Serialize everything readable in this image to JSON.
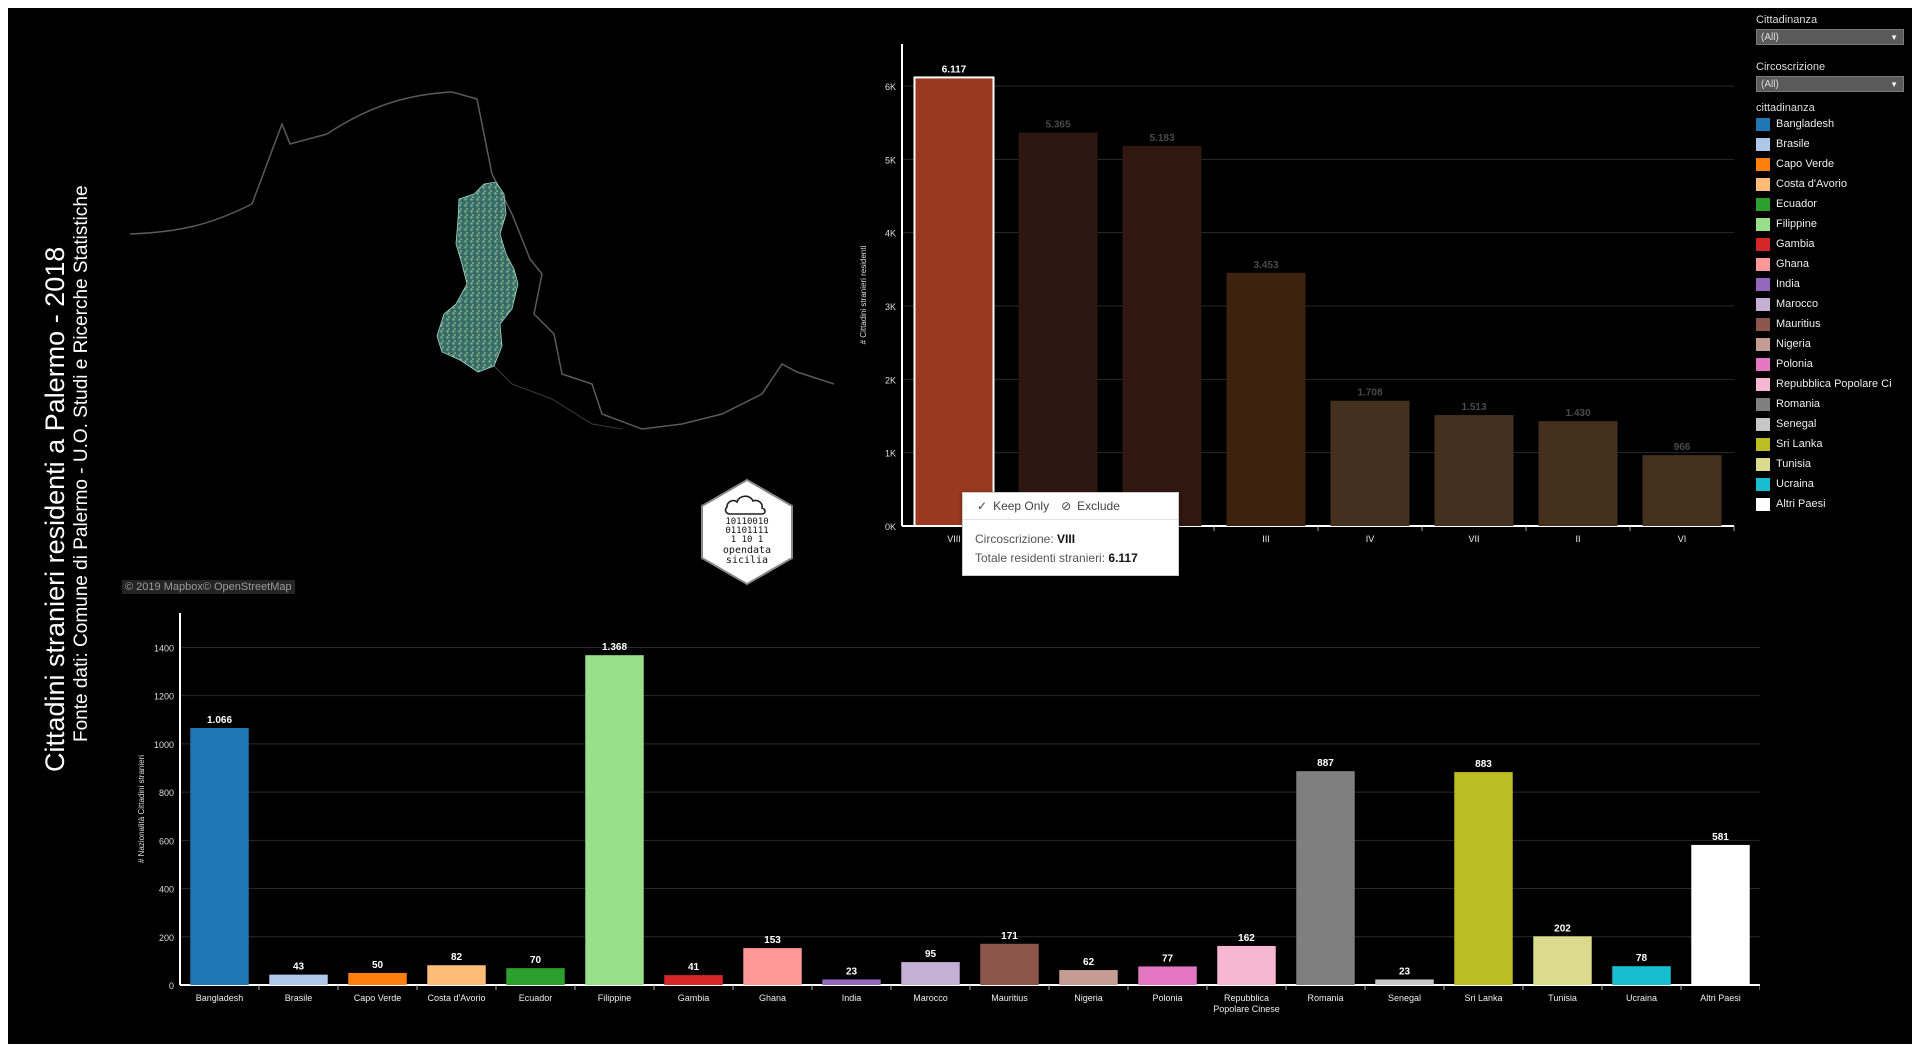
{
  "sidebar": {
    "title": "Cittadini stranieri residenti a Palermo - 2018",
    "subtitle": "Fonte dati: Comune di Palermo - U.O. Studi e Ricerche Statistiche"
  },
  "map": {
    "credit": "© 2019 Mapbox© OpenStreetMap"
  },
  "logo": {
    "line1": "10110010",
    "line2": "01101111",
    "line3": "1  10 1",
    "brand1": "opendata",
    "brand2": "sicilia"
  },
  "filters": {
    "cittadinanza": {
      "label": "Cittadinanza",
      "value": "(All)"
    },
    "circoscrizione": {
      "label": "Circoscrizione",
      "value": "(All)"
    }
  },
  "legend": {
    "title": "cittadinanza",
    "items": [
      {
        "label": "Bangladesh",
        "color": "#1f77b4"
      },
      {
        "label": "Brasile",
        "color": "#aec7e8"
      },
      {
        "label": "Capo Verde",
        "color": "#ff7f0e"
      },
      {
        "label": "Costa d'Avorio",
        "color": "#ffbb78"
      },
      {
        "label": "Ecuador",
        "color": "#2ca02c"
      },
      {
        "label": "Filippine",
        "color": "#98df8a"
      },
      {
        "label": "Gambia",
        "color": "#d62728"
      },
      {
        "label": "Ghana",
        "color": "#ff9896"
      },
      {
        "label": "India",
        "color": "#9467bd"
      },
      {
        "label": "Marocco",
        "color": "#c5b0d5"
      },
      {
        "label": "Mauritius",
        "color": "#8c564b"
      },
      {
        "label": "Nigeria",
        "color": "#c49c94"
      },
      {
        "label": "Polonia",
        "color": "#e377c2"
      },
      {
        "label": "Repubblica Popolare Ci",
        "color": "#f7b6d2"
      },
      {
        "label": "Romania",
        "color": "#7f7f7f"
      },
      {
        "label": "Senegal",
        "color": "#c7c7c7"
      },
      {
        "label": "Sri Lanka",
        "color": "#bcbd22"
      },
      {
        "label": "Tunisia",
        "color": "#dbdb8d"
      },
      {
        "label": "Ucraina",
        "color": "#17becf"
      },
      {
        "label": "Altri Paesi",
        "color": "#ffffff"
      }
    ]
  },
  "tooltip": {
    "keep_only": "Keep Only",
    "exclude": "Exclude",
    "row1_label": "Circoscrizione:",
    "row1_value": "VIII",
    "row2_label": "Totale residenti stranieri:",
    "row2_value": "6.117"
  },
  "chart_data": [
    {
      "type": "bar",
      "ylabel": "# Cittadini stranieri residenti",
      "xlabel": "",
      "ylim": [
        0,
        6300
      ],
      "yticks": [
        0,
        1000,
        2000,
        3000,
        4000,
        5000,
        6000
      ],
      "ytick_labels": [
        "0K",
        "1K",
        "2K",
        "3K",
        "4K",
        "5K",
        "6K"
      ],
      "categories": [
        "VIII",
        "V",
        "I",
        "III",
        "IV",
        "VII",
        "II",
        "VI"
      ],
      "tick_labels": [
        "VIII",
        "V",
        "",
        "III",
        "IV",
        "VII",
        "II",
        "VI"
      ],
      "values": [
        6117,
        5365,
        5183,
        3453,
        1708,
        1513,
        1430,
        966
      ],
      "value_labels": [
        "6.117",
        "5.365",
        "5.183",
        "3.453",
        "1.708",
        "1.513",
        "1.430",
        "966"
      ],
      "colors": [
        "#9b3820",
        "#2e1710",
        "#301810",
        "#3e2210",
        "#43301e",
        "#44301e",
        "#45301e",
        "#45321e"
      ],
      "highlight": 0,
      "grid": true
    },
    {
      "type": "bar",
      "ylabel": "# Nazionalità Cittadini stranieri",
      "xlabel": "",
      "ylim": [
        0,
        1460
      ],
      "yticks": [
        0,
        200,
        400,
        600,
        800,
        1000,
        1200,
        1400
      ],
      "categories": [
        "Bangladesh",
        "Brasile",
        "Capo Verde",
        "Costa d'Avorio",
        "Ecuador",
        "Filippine",
        "Gambia",
        "Ghana",
        "India",
        "Marocco",
        "Mauritius",
        "Nigeria",
        "Polonia",
        "Repubblica Popolare Cinese",
        "Romania",
        "Senegal",
        "Sri Lanka",
        "Tunisia",
        "Ucraina",
        "Altri Paesi"
      ],
      "tick_labels": [
        "Bangladesh",
        "Brasile",
        "Capo Verde",
        "Costa d'Avorio",
        "Ecuador",
        "Filippine",
        "Gambia",
        "Ghana",
        "India",
        "Marocco",
        "Mauritius",
        "Nigeria",
        "Polonia",
        "Repubblica|Popolare Cinese",
        "Romania",
        "Senegal",
        "Sri Lanka",
        "Tunisia",
        "Ucraina",
        "Altri Paesi"
      ],
      "values": [
        1066,
        43,
        50,
        82,
        70,
        1368,
        41,
        153,
        23,
        95,
        171,
        62,
        77,
        162,
        887,
        23,
        883,
        202,
        78,
        581
      ],
      "value_labels": [
        "1.066",
        "43",
        "50",
        "82",
        "70",
        "1.368",
        "41",
        "153",
        "23",
        "95",
        "171",
        "62",
        "77",
        "162",
        "887",
        "23",
        "883",
        "202",
        "78",
        "581"
      ],
      "colors": [
        "#1f77b4",
        "#aec7e8",
        "#ff7f0e",
        "#ffbb78",
        "#2ca02c",
        "#98df8a",
        "#d62728",
        "#ff9896",
        "#9467bd",
        "#c5b0d5",
        "#8c564b",
        "#c49c94",
        "#e377c2",
        "#f7b6d2",
        "#7f7f7f",
        "#c7c7c7",
        "#bcbd22",
        "#dbdb8d",
        "#17becf",
        "#ffffff"
      ],
      "grid": true
    }
  ]
}
